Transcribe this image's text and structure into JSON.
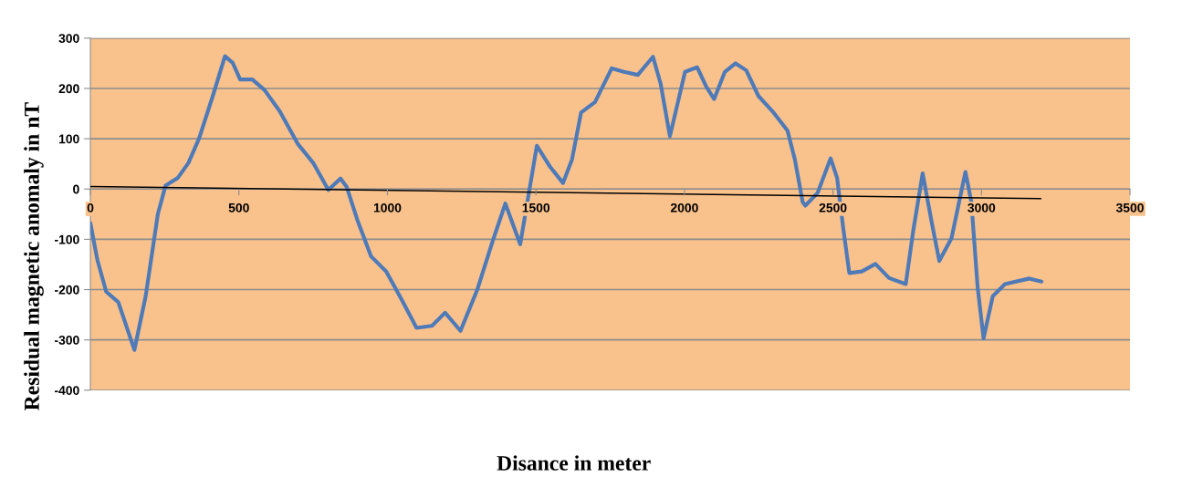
{
  "chart_data": {
    "type": "line",
    "xlabel": "Disance in meter",
    "ylabel": "Residual magnetic anomaly in nT",
    "series": [
      {
        "color": "#4f7ab8",
        "x": [
          0,
          23,
          53,
          94,
          148,
          186,
          227,
          253,
          294,
          330,
          366,
          412,
          453,
          479,
          504,
          545,
          586,
          637,
          699,
          750,
          801,
          842,
          863,
          899,
          945,
          996,
          1047,
          1098,
          1150,
          1194,
          1246,
          1302,
          1354,
          1397,
          1447,
          1503,
          1549,
          1591,
          1621,
          1652,
          1699,
          1755,
          1796,
          1843,
          1894,
          1920,
          1951,
          2002,
          2043,
          2074,
          2100,
          2136,
          2172,
          2208,
          2249,
          2300,
          2347,
          2372,
          2398,
          2407,
          2448,
          2492,
          2514,
          2535,
          2555,
          2597,
          2643,
          2689,
          2745,
          2771,
          2802,
          2833,
          2858,
          2899,
          2946,
          2966,
          2987,
          3007,
          3038,
          3079,
          3161,
          3202
        ],
        "values": [
          -68,
          -140,
          -204,
          -225,
          -320,
          -213,
          -50,
          7,
          22,
          52,
          101,
          185,
          264,
          251,
          218,
          218,
          197,
          155,
          89,
          52,
          -2,
          21,
          4,
          -62,
          -134,
          -164,
          -219,
          -276,
          -272,
          -246,
          -282,
          -201,
          -104,
          -29,
          -110,
          86,
          43,
          12,
          58,
          152,
          173,
          240,
          233,
          227,
          263,
          209,
          105,
          233,
          242,
          203,
          179,
          233,
          250,
          236,
          185,
          152,
          116,
          58,
          -26,
          -33,
          -8,
          61,
          22,
          -80,
          -167,
          -164,
          -149,
          -177,
          -189,
          -80,
          31,
          -68,
          -143,
          -98,
          34,
          -26,
          -195,
          -297,
          -213,
          -189,
          -178,
          -184
        ]
      },
      {
        "type": "line",
        "color": "#000000",
        "x": [
          0,
          3200
        ],
        "values": [
          5,
          -19
        ]
      }
    ],
    "xlim": [
      0,
      3500
    ],
    "xticks": [
      0,
      500,
      1000,
      1500,
      2000,
      2500,
      3000,
      3500
    ],
    "ylim": [
      -400,
      300
    ],
    "yticks": [
      -400,
      -300,
      -200,
      -100,
      0,
      100,
      200,
      300
    ],
    "grid": "y",
    "legend": false,
    "marker": "none",
    "line_style": "solid"
  }
}
